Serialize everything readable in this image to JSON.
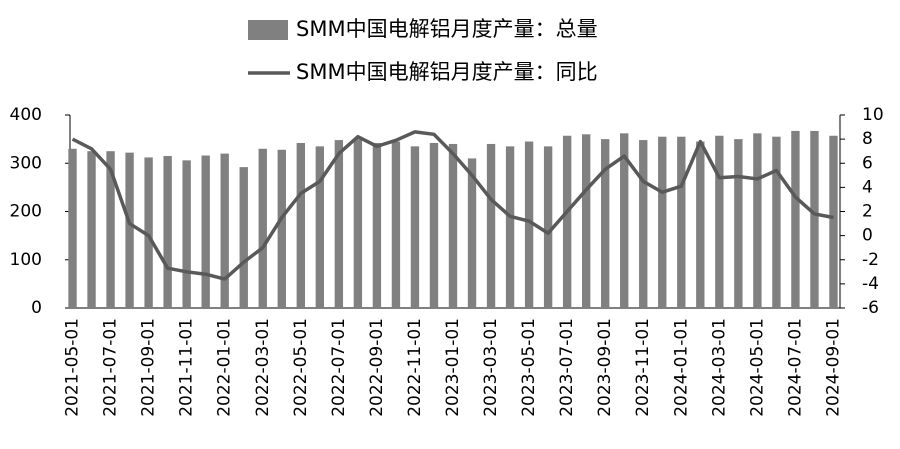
{
  "chart_data": {
    "type": "bar",
    "categories": [
      "2021-05-01",
      null,
      "2021-07-01",
      null,
      "2021-09-01",
      null,
      "2021-11-01",
      null,
      "2022-01-01",
      null,
      "2022-03-01",
      null,
      "2022-05-01",
      null,
      "2022-07-01",
      null,
      "2022-09-01",
      null,
      "2022-11-01",
      null,
      "2023-01-01",
      null,
      "2023-03-01",
      null,
      "2023-05-01",
      null,
      "2023-07-01",
      null,
      "2023-09-01",
      null,
      "2023-11-01",
      null,
      "2024-01-01",
      null,
      "2024-03-01",
      null,
      "2024-05-01",
      null,
      "2024-07-01",
      null,
      "2024-09-01"
    ],
    "series": [
      {
        "name": "SMM中国电解铝月度产量：总量",
        "type": "bar",
        "color": "#808080",
        "values": [
          330,
          325,
          325,
          322,
          312,
          315,
          306,
          316,
          320,
          292,
          330,
          328,
          342,
          335,
          348,
          350,
          342,
          345,
          335,
          342,
          340,
          310,
          340,
          335,
          345,
          335,
          357,
          360,
          350,
          362,
          348,
          355,
          355,
          345,
          357,
          350,
          362,
          355,
          367,
          367,
          357
        ]
      },
      {
        "name": "SMM中国电解铝月度产量：同比",
        "type": "line",
        "axis": "y2",
        "color": "#595959",
        "values": [
          8.0,
          7.2,
          5.5,
          1.0,
          0,
          -2.7,
          -3.0,
          -3.2,
          -3.6,
          -2.2,
          -1.0,
          1.5,
          3.5,
          4.5,
          6.8,
          8.2,
          7.4,
          7.9,
          8.6,
          8.4,
          6.8,
          5.0,
          3.0,
          1.6,
          1.2,
          0.2,
          2.0,
          3.8,
          5.5,
          6.6,
          4.5,
          3.6,
          4.1,
          7.8,
          4.8,
          4.9,
          4.7,
          5.4,
          3.2,
          1.8,
          1.5
        ]
      }
    ],
    "ylim": [
      0,
      400
    ],
    "yticks": [
      0,
      100,
      200,
      300,
      400
    ],
    "y2lim": [
      -6,
      10
    ],
    "y2ticks": [
      -6,
      -4,
      -2,
      0,
      2,
      4,
      6,
      8,
      10
    ],
    "grid": false
  }
}
